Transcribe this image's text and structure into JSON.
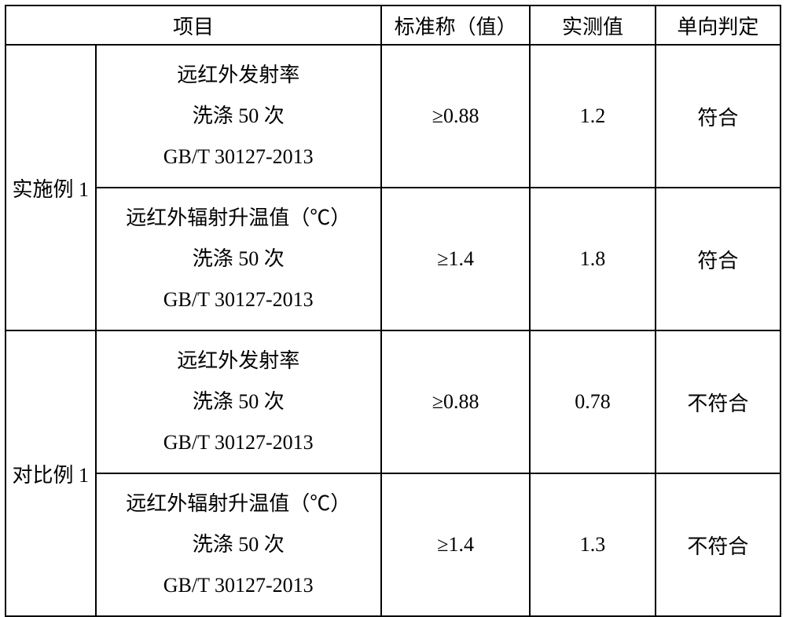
{
  "table": {
    "headers": {
      "item": "项目",
      "standard": "标准称（值）",
      "measured": "实测值",
      "judgment": "单向判定"
    },
    "groups": [
      {
        "label": "实施例 1",
        "rows": [
          {
            "item_line1": "远红外发射率",
            "item_line2": "洗涤 50 次",
            "item_line3": "GB/T 30127-2013",
            "standard": "≥0.88",
            "measured": "1.2",
            "judgment": "符合"
          },
          {
            "item_line1": "远红外辐射升温值（℃）",
            "item_line2": "洗涤 50 次",
            "item_line3": "GB/T 30127-2013",
            "standard": "≥1.4",
            "measured": "1.8",
            "judgment": "符合"
          }
        ]
      },
      {
        "label": "对比例 1",
        "rows": [
          {
            "item_line1": "远红外发射率",
            "item_line2": "洗涤 50 次",
            "item_line3": "GB/T 30127-2013",
            "standard": "≥0.88",
            "measured": "0.78",
            "judgment": "不符合"
          },
          {
            "item_line1": "远红外辐射升温值（℃）",
            "item_line2": "洗涤 50 次",
            "item_line3": "GB/T 30127-2013",
            "standard": "≥1.4",
            "measured": "1.3",
            "judgment": "不符合"
          }
        ]
      }
    ],
    "colors": {
      "background": "#ffffff",
      "border": "#000000",
      "text": "#000000"
    },
    "font_size": 26
  }
}
